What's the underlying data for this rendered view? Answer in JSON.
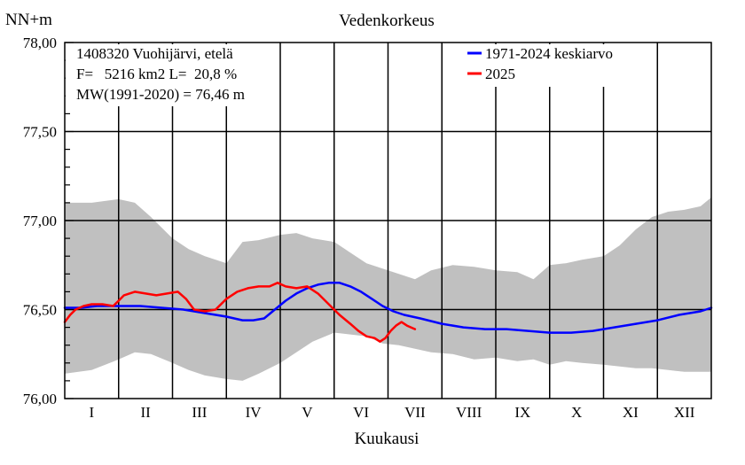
{
  "chart_data": {
    "type": "line",
    "title": "Vedenkorkeus",
    "ylabel": "NN+m",
    "xlabel": "Kuukausi",
    "ylim": [
      76.0,
      78.0
    ],
    "y_ticks": [
      "76,00",
      "76,50",
      "77,00",
      "77,50",
      "78,00"
    ],
    "x_domain": [
      0,
      12
    ],
    "months": [
      "I",
      "II",
      "III",
      "IV",
      "V",
      "VI",
      "VII",
      "VIII",
      "IX",
      "X",
      "XI",
      "XII"
    ],
    "info": {
      "line1": "1408320 Vuohijärvi, etelä",
      "line2": "F=   5216 km2 L=  20,8 %",
      "line3": "MW(1991-2020) = 76,46 m"
    },
    "legend": [
      {
        "label": "1971-2024 keskiarvo",
        "color": "#0000ff"
      },
      {
        "label": "2025",
        "color": "#ff0000"
      }
    ],
    "colors": {
      "band": "#c0c0c0",
      "average": "#0000ff",
      "year": "#ff0000"
    },
    "band": {
      "x": [
        0,
        0.5,
        1.0,
        1.3,
        1.6,
        2.0,
        2.3,
        2.6,
        3.0,
        3.3,
        3.6,
        4.0,
        4.3,
        4.6,
        5.0,
        5.3,
        5.6,
        5.9,
        6.2,
        6.5,
        6.8,
        7.2,
        7.6,
        8.0,
        8.4,
        8.7,
        9.0,
        9.3,
        9.6,
        10.0,
        10.3,
        10.6,
        10.9,
        11.2,
        11.5,
        11.8,
        12.0
      ],
      "min": [
        76.14,
        76.16,
        76.22,
        76.26,
        76.25,
        76.2,
        76.16,
        76.13,
        76.11,
        76.1,
        76.14,
        76.2,
        76.26,
        76.32,
        76.37,
        76.36,
        76.35,
        76.31,
        76.3,
        76.28,
        76.26,
        76.25,
        76.22,
        76.23,
        76.21,
        76.22,
        76.19,
        76.21,
        76.2,
        76.19,
        76.18,
        76.17,
        76.17,
        76.16,
        76.15,
        76.15,
        76.15
      ],
      "max": [
        77.1,
        77.1,
        77.12,
        77.1,
        77.02,
        76.9,
        76.84,
        76.8,
        76.76,
        76.88,
        76.89,
        76.92,
        76.93,
        76.9,
        76.88,
        76.82,
        76.76,
        76.73,
        76.7,
        76.67,
        76.72,
        76.75,
        76.74,
        76.72,
        76.71,
        76.67,
        76.75,
        76.76,
        76.78,
        76.8,
        76.86,
        76.95,
        77.02,
        77.05,
        77.06,
        77.08,
        77.13
      ]
    },
    "series": [
      {
        "name": "1971-2024 keskiarvo",
        "color": "#0000ff",
        "x": [
          0,
          0.3,
          0.6,
          1.0,
          1.4,
          1.8,
          2.2,
          2.6,
          3.0,
          3.3,
          3.5,
          3.7,
          3.9,
          4.1,
          4.3,
          4.5,
          4.7,
          4.9,
          5.1,
          5.3,
          5.5,
          5.7,
          5.9,
          6.1,
          6.3,
          6.6,
          7.0,
          7.4,
          7.8,
          8.2,
          8.6,
          9.0,
          9.4,
          9.8,
          10.2,
          10.6,
          11.0,
          11.4,
          11.8,
          12.0
        ],
        "y": [
          76.51,
          76.51,
          76.52,
          76.52,
          76.52,
          76.51,
          76.5,
          76.48,
          76.46,
          76.44,
          76.44,
          76.45,
          76.5,
          76.55,
          76.59,
          76.62,
          76.64,
          76.65,
          76.65,
          76.63,
          76.6,
          76.56,
          76.52,
          76.49,
          76.47,
          76.45,
          76.42,
          76.4,
          76.39,
          76.39,
          76.38,
          76.37,
          76.37,
          76.38,
          76.4,
          76.42,
          76.44,
          76.47,
          76.49,
          76.51
        ]
      },
      {
        "name": "2025",
        "color": "#ff0000",
        "x": [
          0,
          0.1,
          0.2,
          0.35,
          0.5,
          0.7,
          0.9,
          1.0,
          1.1,
          1.3,
          1.5,
          1.7,
          1.9,
          2.1,
          2.25,
          2.4,
          2.6,
          2.8,
          3.0,
          3.2,
          3.4,
          3.6,
          3.8,
          3.95,
          4.1,
          4.3,
          4.5,
          4.7,
          4.9,
          5.1,
          5.3,
          5.45,
          5.6,
          5.75,
          5.85,
          5.95,
          6.05,
          6.15,
          6.25,
          6.35,
          6.5
        ],
        "y": [
          76.43,
          76.47,
          76.5,
          76.52,
          76.53,
          76.53,
          76.52,
          76.55,
          76.58,
          76.6,
          76.59,
          76.58,
          76.59,
          76.6,
          76.56,
          76.5,
          76.49,
          76.5,
          76.56,
          76.6,
          76.62,
          76.63,
          76.63,
          76.65,
          76.63,
          76.62,
          76.63,
          76.59,
          76.53,
          76.47,
          76.42,
          76.38,
          76.35,
          76.34,
          76.32,
          76.34,
          76.38,
          76.41,
          76.43,
          76.41,
          76.39
        ]
      }
    ]
  }
}
